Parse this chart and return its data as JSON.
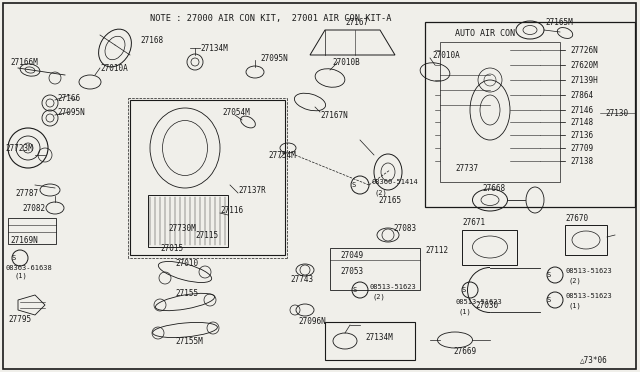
{
  "bg_color": "#f0efea",
  "line_color": "#1a1a1a",
  "text_color": "#1a1a1a",
  "note_text": "NOTE : 27000 AIR CON KIT,  27001 AIR CON KIT-A",
  "auto_aircon_label": "AUTO AIR CON",
  "auto_aircon_parts": [
    "27726N",
    "27620M",
    "27139H",
    "27864",
    "27146",
    "27148",
    "27136",
    "27709",
    "27138"
  ],
  "footer_text": "△73×06",
  "figsize": [
    6.4,
    3.72
  ],
  "dpi": 100
}
